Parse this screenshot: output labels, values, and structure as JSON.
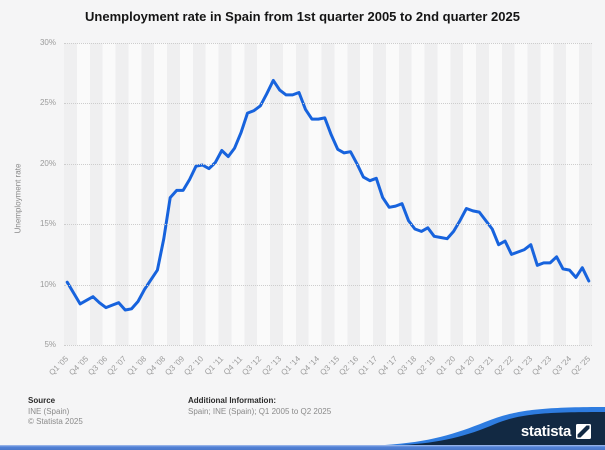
{
  "title": "Unemployment rate in Spain from 1st quarter 2005 to 2nd quarter 2025",
  "y_axis_title": "Unemployment rate",
  "footer": {
    "source_label": "Source",
    "source_value": "INE (Spain)",
    "copyright": "© Statista 2025",
    "additional_label": "Additional Information:",
    "additional_value": "Spain; INE (Spain); Q1 2005 to Q2 2025"
  },
  "branding": {
    "logo_text": "statista"
  },
  "colors": {
    "line": "#1763dd",
    "background": "#f5f5f6",
    "band_dark": "#efeff0",
    "band_light": "#fafafa",
    "grid": "#cdcdcd",
    "axis_text": "#9b9b9b",
    "navy": "#122943",
    "brand_blue": "#2e7ce0",
    "bottom_bar_blue": "#4f7fd6"
  },
  "chart_data": {
    "type": "line",
    "title": "Unemployment rate in Spain from 1st quarter 2005 to 2nd quarter 2025",
    "xlabel": "",
    "ylabel": "Unemployment rate",
    "ylim": [
      5,
      30
    ],
    "y_ticks": [
      5,
      10,
      15,
      20,
      25,
      30
    ],
    "y_tick_labels": [
      "5%",
      "10%",
      "15%",
      "20%",
      "25%",
      "30%"
    ],
    "grid": "horizontal-dotted",
    "legend": "none",
    "x_tick_labels": [
      "Q1 '05",
      "Q4 '05",
      "Q3 '06",
      "Q2 '07",
      "Q1 '08",
      "Q4 '08",
      "Q3 '09",
      "Q2 '10",
      "Q1 '11",
      "Q4 '11",
      "Q3 '12",
      "Q2 '13",
      "Q1 '14",
      "Q4 '14",
      "Q3 '15",
      "Q2 '16",
      "Q1 '17",
      "Q4 '17",
      "Q3 '18",
      "Q2 '19",
      "Q1 '20",
      "Q4 '20",
      "Q3 '21",
      "Q2 '22",
      "Q1 '23",
      "Q4 '23",
      "Q3 '24",
      "Q2 '25"
    ],
    "categories": [
      "Q1 '05",
      "Q2 '05",
      "Q3 '05",
      "Q4 '05",
      "Q1 '06",
      "Q2 '06",
      "Q3 '06",
      "Q4 '06",
      "Q1 '07",
      "Q2 '07",
      "Q3 '07",
      "Q4 '07",
      "Q1 '08",
      "Q2 '08",
      "Q3 '08",
      "Q4 '08",
      "Q1 '09",
      "Q2 '09",
      "Q3 '09",
      "Q4 '09",
      "Q1 '10",
      "Q2 '10",
      "Q3 '10",
      "Q4 '10",
      "Q1 '11",
      "Q2 '11",
      "Q3 '11",
      "Q4 '11",
      "Q1 '12",
      "Q2 '12",
      "Q3 '12",
      "Q4 '12",
      "Q1 '13",
      "Q2 '13",
      "Q3 '13",
      "Q4 '13",
      "Q1 '14",
      "Q2 '14",
      "Q3 '14",
      "Q4 '14",
      "Q1 '15",
      "Q2 '15",
      "Q3 '15",
      "Q4 '15",
      "Q1 '16",
      "Q2 '16",
      "Q3 '16",
      "Q4 '16",
      "Q1 '17",
      "Q2 '17",
      "Q3 '17",
      "Q4 '17",
      "Q1 '18",
      "Q2 '18",
      "Q3 '18",
      "Q4 '18",
      "Q1 '19",
      "Q2 '19",
      "Q3 '19",
      "Q4 '19",
      "Q1 '20",
      "Q2 '20",
      "Q3 '20",
      "Q4 '20",
      "Q1 '21",
      "Q2 '21",
      "Q3 '21",
      "Q4 '21",
      "Q1 '22",
      "Q2 '22",
      "Q3 '22",
      "Q4 '22",
      "Q1 '23",
      "Q2 '23",
      "Q3 '23",
      "Q4 '23",
      "Q1 '24",
      "Q2 '24",
      "Q3 '24",
      "Q4 '24",
      "Q1 '25",
      "Q2 '25"
    ],
    "values": [
      10.2,
      9.3,
      8.4,
      8.7,
      9.0,
      8.5,
      8.1,
      8.3,
      8.5,
      7.9,
      8.0,
      8.6,
      9.6,
      10.4,
      11.2,
      13.8,
      17.2,
      17.8,
      17.8,
      18.7,
      19.8,
      19.9,
      19.6,
      20.1,
      21.1,
      20.6,
      21.3,
      22.6,
      24.2,
      24.4,
      24.8,
      25.8,
      26.9,
      26.1,
      25.7,
      25.7,
      25.9,
      24.5,
      23.7,
      23.7,
      23.8,
      22.4,
      21.2,
      20.9,
      21.0,
      20.0,
      18.9,
      18.6,
      18.8,
      17.2,
      16.4,
      16.5,
      16.7,
      15.3,
      14.6,
      14.4,
      14.7,
      14.0,
      13.9,
      13.8,
      14.4,
      15.3,
      16.3,
      16.1,
      16.0,
      15.3,
      14.6,
      13.3,
      13.6,
      12.5,
      12.7,
      12.9,
      13.3,
      11.6,
      11.8,
      11.8,
      12.3,
      11.3,
      11.2,
      10.6,
      11.4,
      10.3
    ]
  }
}
